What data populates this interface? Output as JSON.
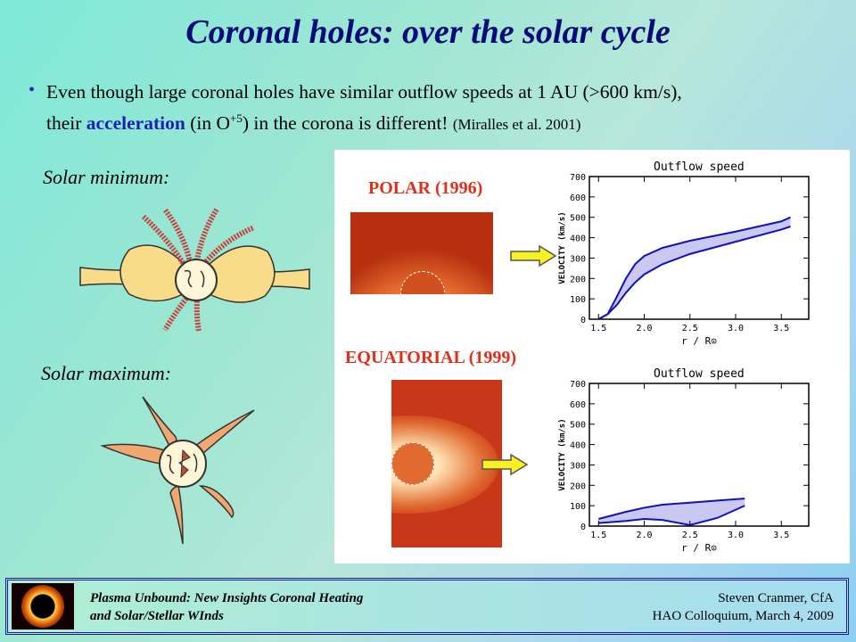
{
  "title": "Coronal holes:  over the solar cycle",
  "bullet": {
    "line1": "Even though large coronal holes have similar outflow speeds at 1 AU (>600 km/s),",
    "line2_pre": "their",
    "line2_accel": "acceleration",
    "line2_mid": "(in O",
    "line2_sup": "+5",
    "line2_post": ") in the corona is different!",
    "citation": "(Miralles et al. 2001)"
  },
  "labels": {
    "solar_min": "Solar minimum:",
    "solar_max": "Solar maximum:"
  },
  "panel": {
    "polar_title": "POLAR (1996)",
    "equatorial_title": "EQUATORIAL (1999)",
    "graph_title": "Outflow speed",
    "ylabel": "VELOCITY (km/s)",
    "xlabel": "r / R⊙"
  },
  "chart_data": [
    {
      "type": "area",
      "title": "Outflow speed",
      "xlabel": "r / R⊙",
      "ylabel": "VELOCITY (km/s)",
      "xlim": [
        1.4,
        3.8
      ],
      "ylim": [
        0,
        700
      ],
      "x_ticks": [
        "1.5",
        "2.0",
        "2.5",
        "3.0",
        "3.5"
      ],
      "y_ticks": [
        "0",
        "100",
        "200",
        "300",
        "400",
        "500",
        "600",
        "700"
      ],
      "series": [
        {
          "x": [
            1.5,
            1.6,
            1.7,
            1.8,
            1.9,
            2.0,
            2.2,
            2.5,
            3.0,
            3.5,
            3.6
          ],
          "values": [
            0,
            25,
            110,
            200,
            270,
            310,
            350,
            385,
            430,
            480,
            500
          ]
        },
        {
          "x": [
            1.5,
            1.6,
            1.7,
            1.8,
            1.9,
            2.0,
            2.2,
            2.5,
            3.0,
            3.5,
            3.6
          ],
          "values": [
            0,
            25,
            70,
            130,
            180,
            220,
            270,
            320,
            380,
            440,
            455
          ]
        }
      ]
    },
    {
      "type": "area",
      "title": "Outflow speed",
      "xlabel": "r / R⊙",
      "ylabel": "VELOCITY (km/s)",
      "xlim": [
        1.4,
        3.8
      ],
      "ylim": [
        0,
        700
      ],
      "x_ticks": [
        "1.5",
        "2.0",
        "2.5",
        "3.0",
        "3.5"
      ],
      "y_ticks": [
        "0",
        "100",
        "200",
        "300",
        "400",
        "500",
        "600",
        "700"
      ],
      "series": [
        {
          "x": [
            1.5,
            1.8,
            2.0,
            2.2,
            2.5,
            2.8,
            3.1
          ],
          "values": [
            35,
            70,
            90,
            105,
            115,
            125,
            135
          ]
        },
        {
          "x": [
            1.5,
            1.8,
            2.0,
            2.2,
            2.5,
            2.8,
            3.1
          ],
          "values": [
            15,
            25,
            35,
            30,
            5,
            40,
            100
          ]
        }
      ]
    }
  ],
  "footer": {
    "left_line1": "Plasma Unbound:  New Insights Coronal Heating",
    "left_line2": "and Solar/Stellar WInds",
    "right_line1": "Steven Cranmer,  CfA",
    "right_line2": "HAO Colloquium, March 4, 2009"
  },
  "colors": {
    "title": "#0a0a78",
    "accent": "#1e1eb4",
    "panel_title": "#e0301c",
    "graph_line": "#1010c0",
    "graph_fill": "#c8c8f0"
  }
}
